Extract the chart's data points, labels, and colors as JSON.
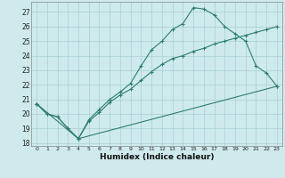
{
  "xlabel": "Humidex (Indice chaleur)",
  "bg_color": "#ceeaec",
  "line_color": "#2e7d6e",
  "grid_color": "#aacfd2",
  "xlim": [
    -0.5,
    23.5
  ],
  "ylim": [
    17.8,
    27.7
  ],
  "yticks": [
    18,
    19,
    20,
    21,
    22,
    23,
    24,
    25,
    26,
    27
  ],
  "xticks": [
    0,
    1,
    2,
    3,
    4,
    5,
    6,
    7,
    8,
    9,
    10,
    11,
    12,
    13,
    14,
    15,
    16,
    17,
    18,
    19,
    20,
    21,
    22,
    23
  ],
  "line1_x": [
    0,
    1,
    2,
    3,
    4,
    5,
    6,
    7,
    8,
    9,
    10,
    11,
    12,
    13,
    14,
    15,
    16,
    17,
    18,
    19,
    20,
    21,
    22,
    23
  ],
  "line1_y": [
    20.7,
    20.0,
    19.8,
    19.0,
    18.3,
    19.6,
    20.3,
    21.0,
    21.5,
    22.1,
    23.3,
    24.4,
    25.0,
    25.8,
    26.2,
    27.3,
    27.2,
    26.8,
    26.0,
    25.5,
    25.0,
    23.3,
    22.8,
    21.9
  ],
  "line2_x": [
    0,
    1,
    2,
    3,
    4,
    5,
    6,
    7,
    8,
    9,
    10,
    11,
    12,
    13,
    14,
    15,
    16,
    17,
    18,
    19,
    20,
    21,
    22,
    23
  ],
  "line2_y": [
    20.7,
    20.0,
    19.8,
    19.0,
    18.3,
    19.5,
    20.1,
    20.8,
    21.3,
    21.7,
    22.3,
    22.9,
    23.4,
    23.8,
    24.0,
    24.3,
    24.5,
    24.8,
    25.0,
    25.2,
    25.4,
    25.6,
    25.8,
    26.0
  ],
  "line3_x": [
    0,
    4,
    23
  ],
  "line3_y": [
    20.7,
    18.3,
    21.9
  ]
}
